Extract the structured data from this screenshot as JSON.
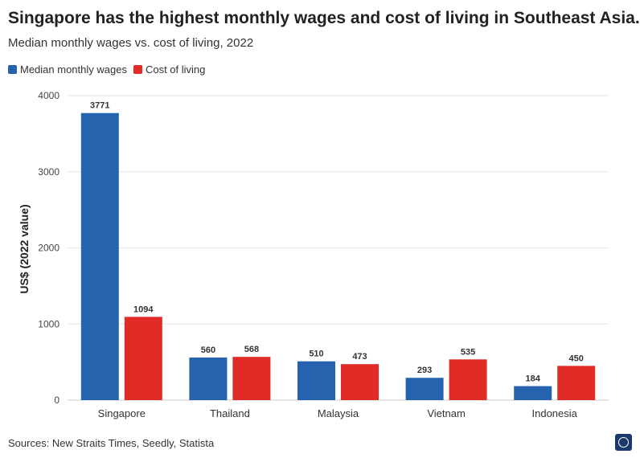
{
  "header": {
    "title": "Singapore has the highest monthly wages and cost of living in Southeast Asia.",
    "subtitle": "Median monthly wages vs. cost of living, 2022"
  },
  "legend": [
    {
      "label": "Median monthly wages",
      "color": "#2563ae"
    },
    {
      "label": "Cost of living",
      "color": "#e02b27"
    }
  ],
  "footer": {
    "source": "Sources: New Straits Times, Seedly, Statista",
    "logo_icon": "publisher-logo-icon"
  },
  "chart_data": {
    "type": "bar",
    "title": "Singapore has the highest monthly wages and cost of living in Southeast Asia.",
    "subtitle": "Median monthly wages vs. cost of living, 2022",
    "xlabel": "",
    "ylabel": "US$ (2022 value)",
    "categories": [
      "Singapore",
      "Thailand",
      "Malaysia",
      "Vietnam",
      "Indonesia"
    ],
    "series": [
      {
        "name": "Median monthly wages",
        "color": "#2563ae",
        "values": [
          3771,
          560,
          510,
          293,
          184
        ]
      },
      {
        "name": "Cost of living",
        "color": "#e02b27",
        "values": [
          1094,
          568,
          473,
          535,
          450
        ]
      }
    ],
    "ylim": [
      0,
      4000
    ],
    "yticks": [
      0,
      1000,
      2000,
      3000,
      4000
    ],
    "grid": true,
    "legend_position": "top-left"
  }
}
